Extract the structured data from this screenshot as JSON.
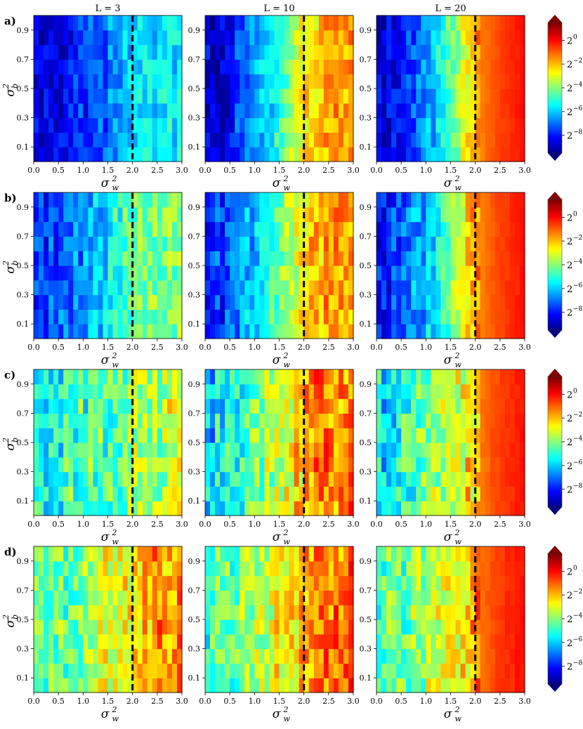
{
  "chart_data": {
    "type": "heatmap",
    "column_titles": [
      "L = 3",
      "L = 10",
      "L = 20"
    ],
    "row_labels": [
      "a)",
      "b)",
      "c)",
      "d)"
    ],
    "xlabel": "σ",
    "xlabel_sub": "w",
    "xlabel_sup": "2",
    "ylabel": "σ",
    "ylabel_sub": "b",
    "ylabel_sup": "2",
    "xlim": [
      0,
      3
    ],
    "ylim": [
      0,
      1
    ],
    "x_ticks": [
      "0.0",
      "0.5",
      "1.0",
      "1.5",
      "2.0",
      "2.5",
      "3.0"
    ],
    "y_ticks": [
      "0.1",
      "0.3",
      "0.5",
      "0.7",
      "0.9"
    ],
    "critical_line_x": 2.0,
    "grid": {
      "columns": 30,
      "rows": 10
    },
    "colormap": "jet",
    "colorbar": {
      "scale": "log2",
      "range_exponent": [
        -9.5,
        1.5
      ],
      "extend": "both",
      "tick_base": "2",
      "tick_exponents": [
        "0",
        "−2",
        "−4",
        "−6",
        "−8"
      ],
      "tick_values_exponent": [
        0,
        -2,
        -4,
        -6,
        -8
      ]
    },
    "panels": [
      {
        "row": "a)",
        "L": 3,
        "mean_log2": {
          "left": -8.6,
          "at_critical": -5.8,
          "right_end": -5.5
        },
        "noise": 0.9
      },
      {
        "row": "a)",
        "L": 10,
        "mean_log2": {
          "left": -8.6,
          "at_critical": -2.6,
          "right_end": -1.6
        },
        "noise": 0.9
      },
      {
        "row": "a)",
        "L": 20,
        "mean_log2": {
          "left": -8.7,
          "at_critical": -1.8,
          "right_end": 0.0
        },
        "noise": 0.9
      },
      {
        "row": "b)",
        "L": 3,
        "mean_log2": {
          "left": -7.6,
          "at_critical": -4.3,
          "right_end": -4.0
        },
        "noise": 1.0
      },
      {
        "row": "b)",
        "L": 10,
        "mean_log2": {
          "left": -7.8,
          "at_critical": -2.2,
          "right_end": -1.4
        },
        "noise": 1.0
      },
      {
        "row": "b)",
        "L": 20,
        "mean_log2": {
          "left": -7.9,
          "at_critical": -1.8,
          "right_end": 0.0
        },
        "noise": 1.0
      },
      {
        "row": "c)",
        "L": 3,
        "mean_log2": {
          "left": -5.2,
          "at_critical": -3.9,
          "right_end": -3.2
        },
        "noise": 1.3
      },
      {
        "row": "c)",
        "L": 10,
        "mean_log2": {
          "left": -5.8,
          "at_critical": -1.8,
          "right_end": -1.2
        },
        "noise": 1.3
      },
      {
        "row": "c)",
        "L": 20,
        "mean_log2": {
          "left": -5.6,
          "at_critical": -1.7,
          "right_end": 0.0
        },
        "noise": 1.3
      },
      {
        "row": "d)",
        "L": 3,
        "mean_log2": {
          "left": -4.5,
          "at_critical": -2.2,
          "right_end": -1.4
        },
        "noise": 1.2
      },
      {
        "row": "d)",
        "L": 10,
        "mean_log2": {
          "left": -4.6,
          "at_critical": -1.6,
          "right_end": -0.9
        },
        "noise": 1.2
      },
      {
        "row": "d)",
        "L": 20,
        "mean_log2": {
          "left": -4.6,
          "at_critical": -1.5,
          "right_end": 0.0
        },
        "noise": 1.2
      }
    ]
  }
}
